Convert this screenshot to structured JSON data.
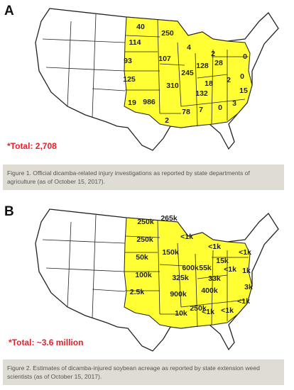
{
  "panels": [
    {
      "letter": "A",
      "total": "*Total: 2,708",
      "caption": "Figure 1. Official dicamba-related injury investigations as reported by state departments of agriculture (as of October 15, 2017).",
      "labels": [
        "40",
        "250",
        "114",
        "4",
        "2",
        "93",
        "107",
        "245",
        "128",
        "28",
        "0",
        "125",
        "310",
        "18",
        "2",
        "0",
        "132",
        "15",
        "986",
        "19",
        "3",
        "0",
        "7",
        "78",
        "2"
      ]
    },
    {
      "letter": "B",
      "total": "*Total: ~3.6 million",
      "caption": "Figure 2. Estimates of dicamba-injured soybean acreage as reported by state extension weed scientists (as of October 15, 2017).",
      "labels": [
        "250k",
        "265k",
        "250k",
        "<1k",
        "<1k",
        "50k",
        "150k",
        "600k",
        "55k",
        "15k",
        "<1k",
        "100k",
        "325k",
        "33k",
        "<1k",
        "1k",
        "400k",
        "3k",
        "2.5k",
        "900k",
        "250k",
        "10k",
        "<1k",
        "<1k",
        "<1k"
      ]
    }
  ]
}
